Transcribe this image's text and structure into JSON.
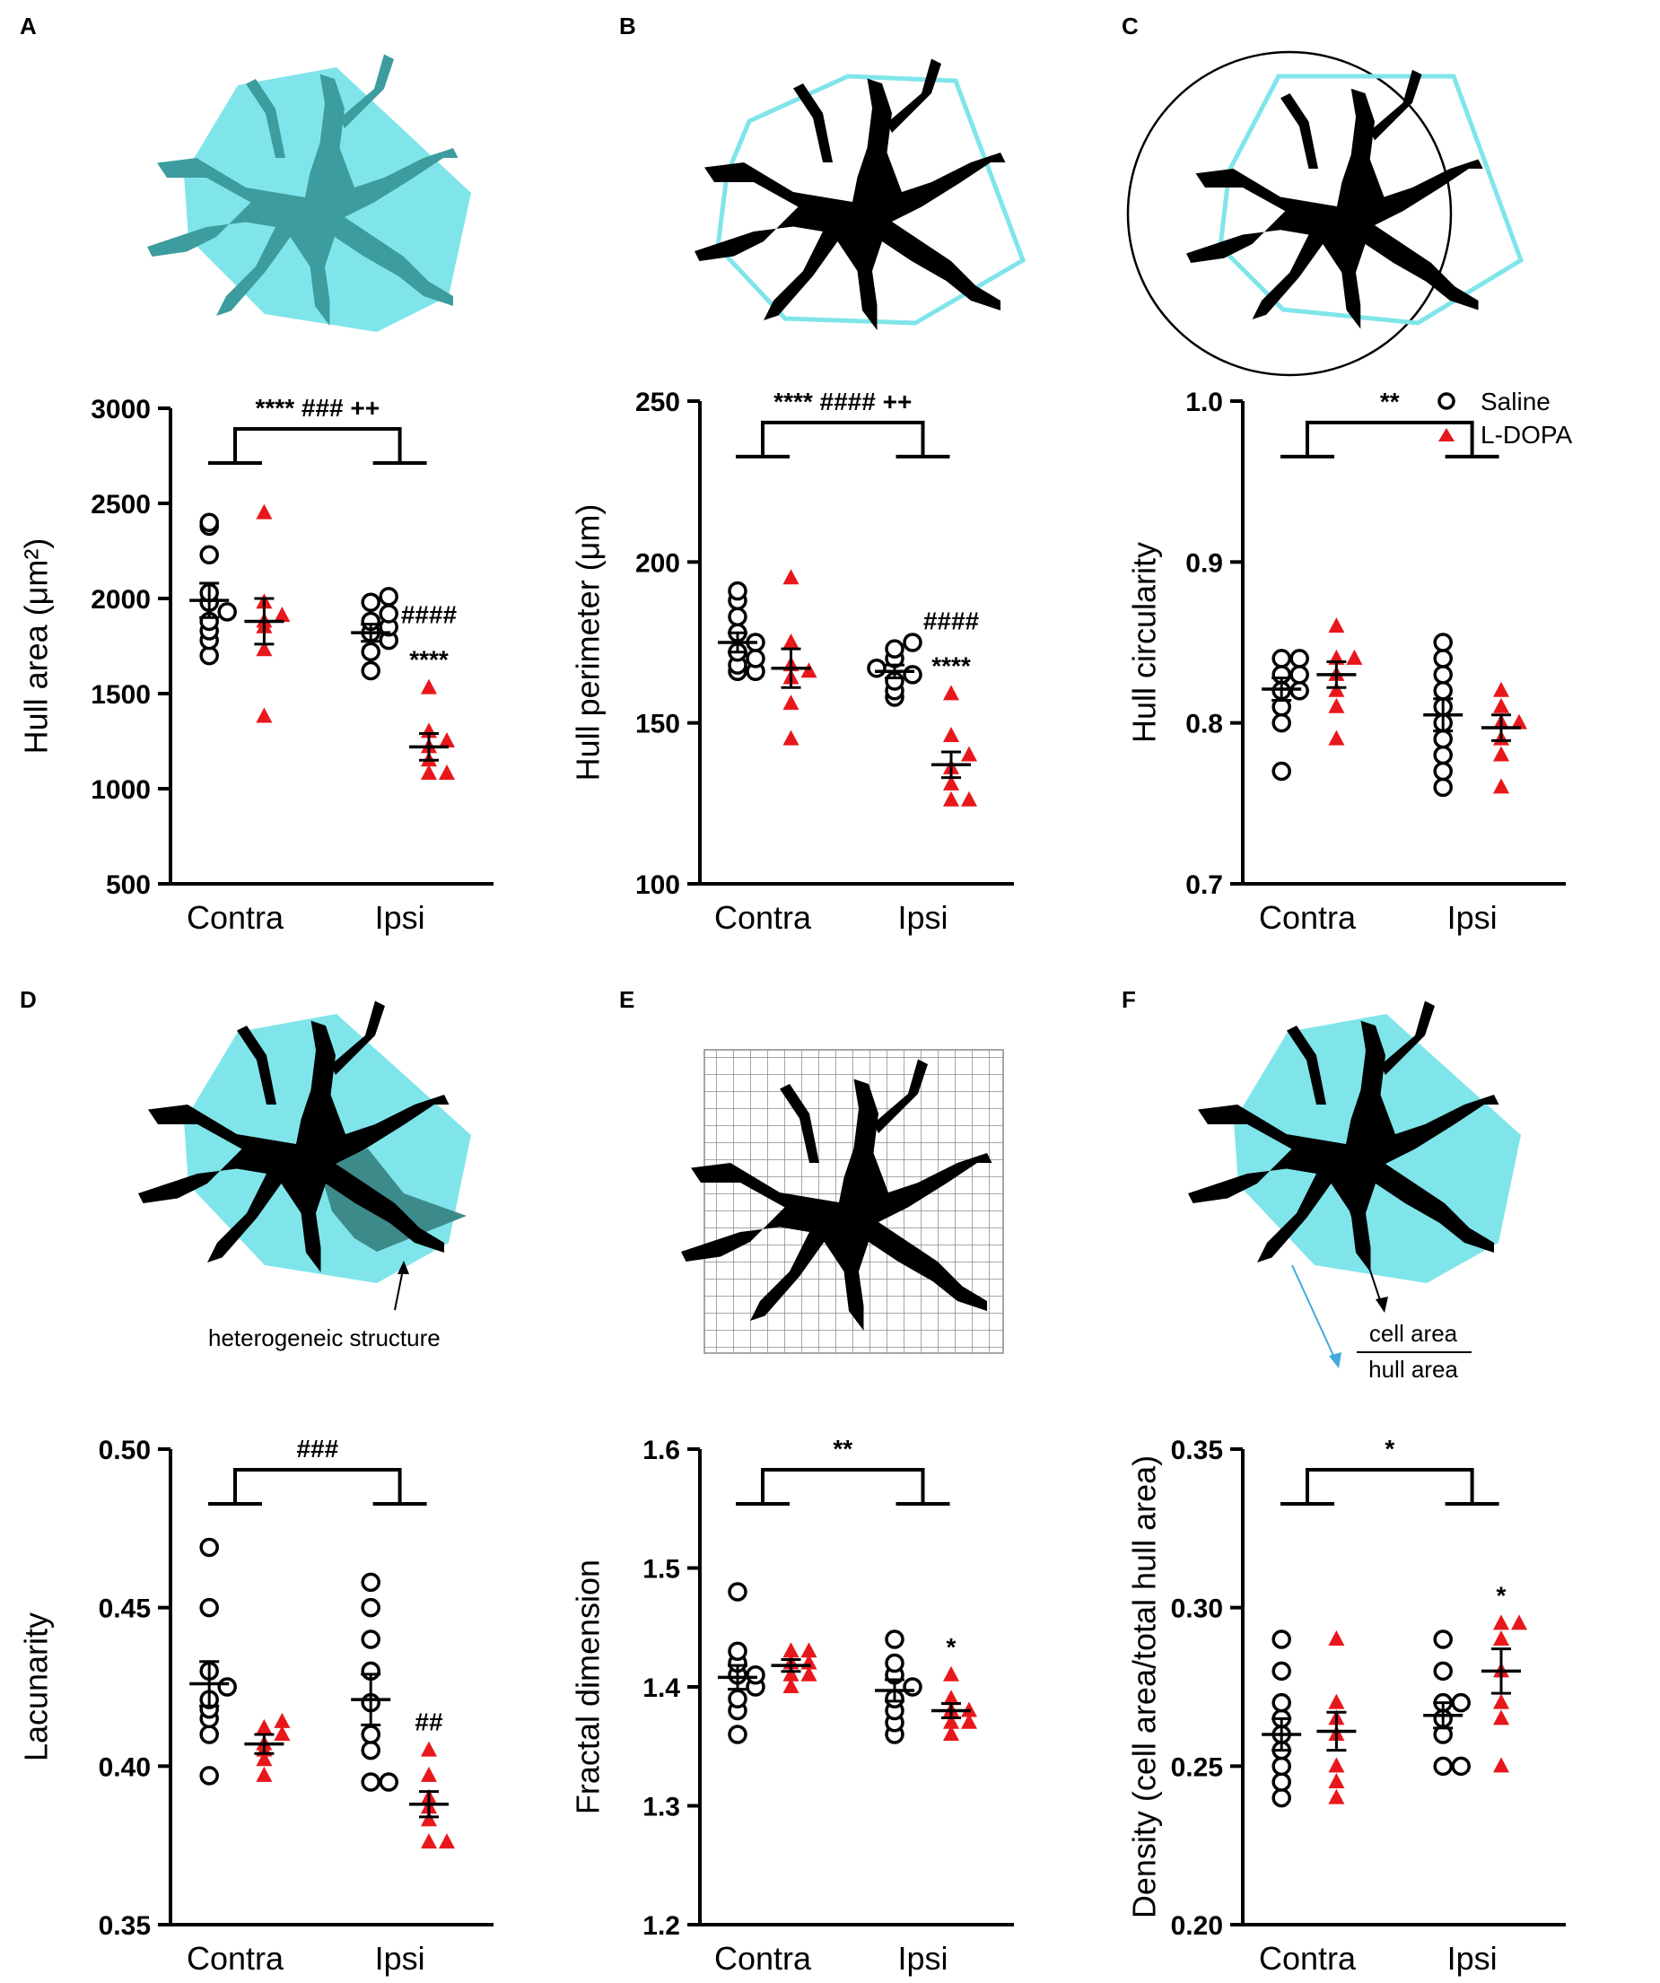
{
  "panels": [
    {
      "letter": "A",
      "illustration": "cell-hull-filled"
    },
    {
      "letter": "B",
      "illustration": "cell-hull-outline"
    },
    {
      "letter": "C",
      "illustration": "cell-hull-circle"
    },
    {
      "letter": "D",
      "illustration": "cell-lacunarity",
      "label": "heterogeneic structure"
    },
    {
      "letter": "E",
      "illustration": "cell-grid"
    },
    {
      "letter": "F",
      "illustration": "cell-density",
      "label_num": "cell area",
      "label_den": "hull area"
    }
  ],
  "legend": {
    "saline": "Saline",
    "ldopa": "L-DOPA",
    "saline_color": "#000000",
    "ldopa_color": "#e8171b"
  },
  "chart_data": [
    {
      "type": "scatter",
      "title": "",
      "ylabel": "Hull area (μm²)",
      "categories": [
        "Contra",
        "Ipsi"
      ],
      "ylim": [
        500,
        3000
      ],
      "yticks": [
        "500",
        "1000",
        "1500",
        "2000",
        "2500",
        "3000"
      ],
      "series": [
        {
          "name": "Saline",
          "group": "Contra",
          "values": [
            1700,
            1780,
            1830,
            1880,
            1930,
            1980,
            2030,
            2230,
            2380,
            2400
          ],
          "mean": 1990,
          "sem": 90
        },
        {
          "name": "L-DOPA",
          "group": "Contra",
          "values": [
            1380,
            1730,
            1850,
            1880,
            1910,
            1980,
            2450
          ],
          "mean": 1880,
          "sem": 120
        },
        {
          "name": "Saline",
          "group": "Ipsi",
          "values": [
            1620,
            1720,
            1780,
            1820,
            1850,
            1880,
            1920,
            1980,
            2010
          ],
          "mean": 1820,
          "sem": 45
        },
        {
          "name": "L-DOPA",
          "group": "Ipsi",
          "values": [
            1080,
            1080,
            1150,
            1220,
            1250,
            1300,
            1530
          ],
          "mean": 1220,
          "sem": 70
        }
      ],
      "bracket_label": "**** ### ++",
      "annotations": [
        {
          "group": "Ipsi",
          "series": "L-DOPA",
          "lines": [
            "####",
            "****"
          ]
        }
      ]
    },
    {
      "type": "scatter",
      "title": "",
      "ylabel": "Hull perimeter (μm)",
      "categories": [
        "Contra",
        "Ipsi"
      ],
      "ylim": [
        100,
        250
      ],
      "yticks": [
        "100",
        "150",
        "200",
        "250"
      ],
      "series": [
        {
          "name": "Saline",
          "group": "Contra",
          "values": [
            166,
            166,
            168,
            170,
            172,
            175,
            178,
            183,
            188,
            191
          ],
          "mean": 175,
          "sem": 3
        },
        {
          "name": "L-DOPA",
          "group": "Contra",
          "values": [
            145,
            156,
            164,
            166,
            168,
            175,
            195
          ],
          "mean": 167,
          "sem": 6
        },
        {
          "name": "Saline",
          "group": "Ipsi",
          "values": [
            158,
            160,
            163,
            165,
            167,
            170,
            173,
            175
          ],
          "mean": 166,
          "sem": 2
        },
        {
          "name": "L-DOPA",
          "group": "Ipsi",
          "values": [
            126,
            126,
            131,
            136,
            140,
            146,
            159
          ],
          "mean": 137,
          "sem": 4
        }
      ],
      "bracket_label": "**** #### ++",
      "annotations": [
        {
          "group": "Ipsi",
          "series": "L-DOPA",
          "lines": [
            "####",
            "****"
          ]
        }
      ]
    },
    {
      "type": "scatter",
      "title": "",
      "ylabel": "Hull circularity",
      "categories": [
        "Contra",
        "Ipsi"
      ],
      "ylim": [
        0.7,
        1.0
      ],
      "yticks": [
        "0.7",
        "0.8",
        "0.9",
        "1.0"
      ],
      "series": [
        {
          "name": "Saline",
          "group": "Contra",
          "values": [
            0.77,
            0.8,
            0.81,
            0.82,
            0.82,
            0.83,
            0.83,
            0.84,
            0.84
          ],
          "mean": 0.821,
          "sem": 0.007
        },
        {
          "name": "L-DOPA",
          "group": "Contra",
          "values": [
            0.79,
            0.81,
            0.82,
            0.83,
            0.84,
            0.84,
            0.86
          ],
          "mean": 0.83,
          "sem": 0.008
        },
        {
          "name": "Saline",
          "group": "Ipsi",
          "values": [
            0.76,
            0.77,
            0.78,
            0.79,
            0.8,
            0.81,
            0.82,
            0.83,
            0.84,
            0.85
          ],
          "mean": 0.805,
          "sem": 0.01
        },
        {
          "name": "L-DOPA",
          "group": "Ipsi",
          "values": [
            0.76,
            0.78,
            0.79,
            0.8,
            0.8,
            0.81,
            0.82
          ],
          "mean": 0.797,
          "sem": 0.008
        }
      ],
      "bracket_label": "**",
      "annotations": []
    },
    {
      "type": "scatter",
      "title": "",
      "ylabel": "Lacunarity",
      "categories": [
        "Contra",
        "Ipsi"
      ],
      "ylim": [
        0.35,
        0.5
      ],
      "yticks": [
        "0.35",
        "0.40",
        "0.45",
        "0.50"
      ],
      "series": [
        {
          "name": "Saline",
          "group": "Contra",
          "values": [
            0.397,
            0.41,
            0.415,
            0.418,
            0.421,
            0.425,
            0.43,
            0.45,
            0.469
          ],
          "mean": 0.426,
          "sem": 0.007
        },
        {
          "name": "L-DOPA",
          "group": "Contra",
          "values": [
            0.397,
            0.402,
            0.405,
            0.407,
            0.41,
            0.412,
            0.414
          ],
          "mean": 0.407,
          "sem": 0.003
        },
        {
          "name": "Saline",
          "group": "Ipsi",
          "values": [
            0.395,
            0.395,
            0.405,
            0.41,
            0.42,
            0.43,
            0.44,
            0.45,
            0.458
          ],
          "mean": 0.421,
          "sem": 0.008
        },
        {
          "name": "L-DOPA",
          "group": "Ipsi",
          "values": [
            0.376,
            0.376,
            0.383,
            0.387,
            0.39,
            0.397,
            0.405
          ],
          "mean": 0.388,
          "sem": 0.004
        }
      ],
      "bracket_label": "###",
      "annotations": [
        {
          "group": "Ipsi",
          "series": "L-DOPA",
          "lines": [
            "##"
          ]
        }
      ]
    },
    {
      "type": "scatter",
      "title": "",
      "ylabel": "Fractal dimension",
      "categories": [
        "Contra",
        "Ipsi"
      ],
      "ylim": [
        1.2,
        1.6
      ],
      "yticks": [
        "1.2",
        "1.3",
        "1.4",
        "1.5",
        "1.6"
      ],
      "series": [
        {
          "name": "Saline",
          "group": "Contra",
          "values": [
            1.36,
            1.38,
            1.39,
            1.4,
            1.41,
            1.41,
            1.42,
            1.43,
            1.48
          ],
          "mean": 1.408,
          "sem": 0.01
        },
        {
          "name": "L-DOPA",
          "group": "Contra",
          "values": [
            1.4,
            1.41,
            1.41,
            1.42,
            1.42,
            1.43,
            1.43
          ],
          "mean": 1.418,
          "sem": 0.005
        },
        {
          "name": "Saline",
          "group": "Ipsi",
          "values": [
            1.36,
            1.37,
            1.38,
            1.39,
            1.4,
            1.41,
            1.42,
            1.44
          ],
          "mean": 1.397,
          "sem": 0.009
        },
        {
          "name": "L-DOPA",
          "group": "Ipsi",
          "values": [
            1.36,
            1.37,
            1.37,
            1.38,
            1.38,
            1.39,
            1.41
          ],
          "mean": 1.38,
          "sem": 0.006
        }
      ],
      "bracket_label": "**",
      "annotations": [
        {
          "group": "Ipsi",
          "series": "L-DOPA",
          "lines": [
            "*"
          ]
        }
      ]
    },
    {
      "type": "scatter",
      "title": "",
      "ylabel": "Density (cell area/total hull area)",
      "categories": [
        "Contra",
        "Ipsi"
      ],
      "ylim": [
        0.2,
        0.35
      ],
      "yticks": [
        "0.20",
        "0.25",
        "0.30",
        "0.35"
      ],
      "series": [
        {
          "name": "Saline",
          "group": "Contra",
          "values": [
            0.24,
            0.245,
            0.25,
            0.255,
            0.26,
            0.265,
            0.27,
            0.28,
            0.29
          ],
          "mean": 0.26,
          "sem": 0.005
        },
        {
          "name": "L-DOPA",
          "group": "Contra",
          "values": [
            0.24,
            0.245,
            0.25,
            0.26,
            0.265,
            0.27,
            0.29
          ],
          "mean": 0.261,
          "sem": 0.006
        },
        {
          "name": "Saline",
          "group": "Ipsi",
          "values": [
            0.25,
            0.25,
            0.26,
            0.265,
            0.27,
            0.27,
            0.28,
            0.29
          ],
          "mean": 0.266,
          "sem": 0.004
        },
        {
          "name": "L-DOPA",
          "group": "Ipsi",
          "values": [
            0.25,
            0.265,
            0.27,
            0.28,
            0.29,
            0.295,
            0.295
          ],
          "mean": 0.28,
          "sem": 0.007
        }
      ],
      "bracket_label": "*",
      "annotations": [
        {
          "group": "Ipsi",
          "series": "L-DOPA",
          "lines": [
            "*"
          ]
        }
      ]
    }
  ]
}
